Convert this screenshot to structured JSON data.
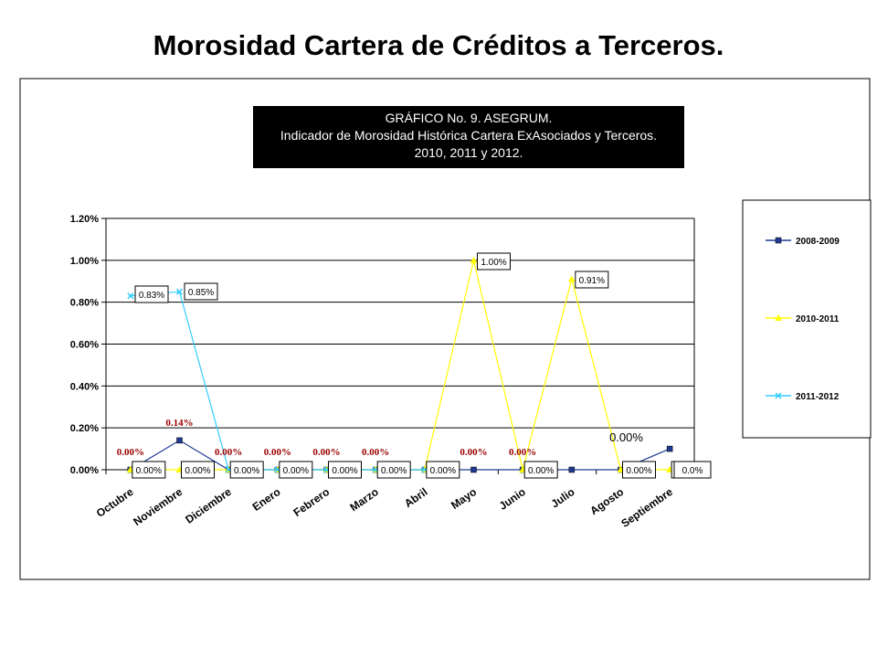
{
  "page": {
    "title": "Morosidad Cartera de Créditos a Terceros."
  },
  "chart_data": {
    "type": "line",
    "title_lines": [
      "GRÁFICO No. 9. ASEGRUM.",
      "Indicador de Morosidad Histórica Cartera ExAsociados y Terceros.",
      "2010, 2011 y 2012."
    ],
    "categories": [
      "Octubre",
      "Noviembre",
      "Diciembre",
      "Enero",
      "Febrero",
      "Marzo",
      "Abril",
      "Mayo",
      "Junio",
      "Julio",
      "Agosto",
      "Septiembre"
    ],
    "y_ticks": [
      "0.00%",
      "0.20%",
      "0.40%",
      "0.60%",
      "0.80%",
      "1.00%",
      "1.20%"
    ],
    "ylim": [
      0,
      1.2
    ],
    "grid": true,
    "legend_position": "right",
    "series": [
      {
        "name": "2008-2009",
        "color": "#1f3a93",
        "marker": "square",
        "values": [
          0,
          0.14,
          0,
          0,
          0,
          0,
          0,
          0,
          0,
          0,
          0,
          0.1
        ],
        "labels": [
          "0.00%",
          "0.14%",
          "0.00%",
          "0.00%",
          "0.00%",
          "0.00%",
          "",
          "0.00%",
          "0.00%",
          "",
          "0.00%",
          ""
        ]
      },
      {
        "name": "2010-2011",
        "color": "#ffff00",
        "marker": "triangle",
        "values": [
          0,
          0,
          0,
          0,
          0,
          0,
          0,
          1.0,
          0,
          0.91,
          0,
          0
        ],
        "labels": [
          "0.00%",
          "0.00%",
          "0.00%",
          "0.00%",
          "0.00%",
          "0.00%",
          "0.00%",
          "1.00%",
          "0.00%",
          "0.91%",
          "0.00%",
          "0.00%"
        ]
      },
      {
        "name": "2011-2012",
        "color": "#33ccff",
        "marker": "x",
        "values": [
          0.83,
          0.85,
          0,
          0,
          0,
          0,
          0,
          null,
          null,
          null,
          null,
          null
        ],
        "labels": [
          "0.83%",
          "0.85%",
          "",
          "",
          "",
          "",
          "",
          "",
          "",
          "",
          "",
          "0.0%"
        ]
      }
    ]
  }
}
